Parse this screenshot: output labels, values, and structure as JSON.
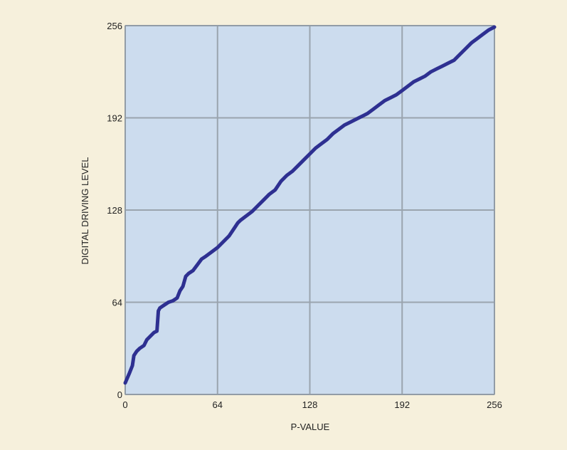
{
  "chart_data": {
    "type": "line",
    "title": "",
    "xlabel": "P-VALUE",
    "ylabel": "DIGITAL DRIVING LEVEL",
    "xlim": [
      0,
      256
    ],
    "ylim": [
      0,
      256
    ],
    "xticks": [
      0,
      64,
      128,
      192,
      256
    ],
    "yticks": [
      0,
      64,
      128,
      192,
      256
    ],
    "grid": true,
    "colors": {
      "page_background": "#f6f0dc",
      "plot_background": "#ccdcee",
      "grid": "#9aa4ae",
      "line": "#2e3091"
    },
    "series": [
      {
        "x": [
          0,
          3,
          5,
          6,
          8,
          10,
          13,
          15,
          18,
          20,
          22,
          23,
          24,
          27,
          30,
          33,
          36,
          38,
          40,
          42,
          44,
          47,
          50,
          53,
          56,
          60,
          64,
          68,
          72,
          76,
          78,
          80,
          84,
          88,
          92,
          96,
          100,
          104,
          108,
          112,
          116,
          120,
          124,
          128,
          132,
          136,
          140,
          144,
          148,
          152,
          156,
          160,
          164,
          168,
          172,
          176,
          180,
          184,
          188,
          192,
          196,
          200,
          204,
          208,
          212,
          216,
          220,
          224,
          228,
          232,
          236,
          240,
          244,
          248,
          252,
          256
        ],
        "y": [
          8,
          15,
          20,
          27,
          30,
          32,
          34,
          38,
          41,
          43,
          44,
          58,
          60,
          62,
          64,
          65,
          67,
          72,
          75,
          82,
          84,
          86,
          90,
          94,
          96,
          99,
          102,
          106,
          110,
          116,
          119,
          121,
          124,
          127,
          131,
          135,
          139,
          142,
          148,
          152,
          155,
          159,
          163,
          167,
          171,
          174,
          177,
          181,
          184,
          187,
          189,
          191,
          193,
          195,
          198,
          201,
          204,
          206,
          208,
          211,
          214,
          217,
          219,
          221,
          224,
          226,
          228,
          230,
          232,
          236,
          240,
          244,
          247,
          250,
          253,
          255
        ]
      }
    ]
  }
}
